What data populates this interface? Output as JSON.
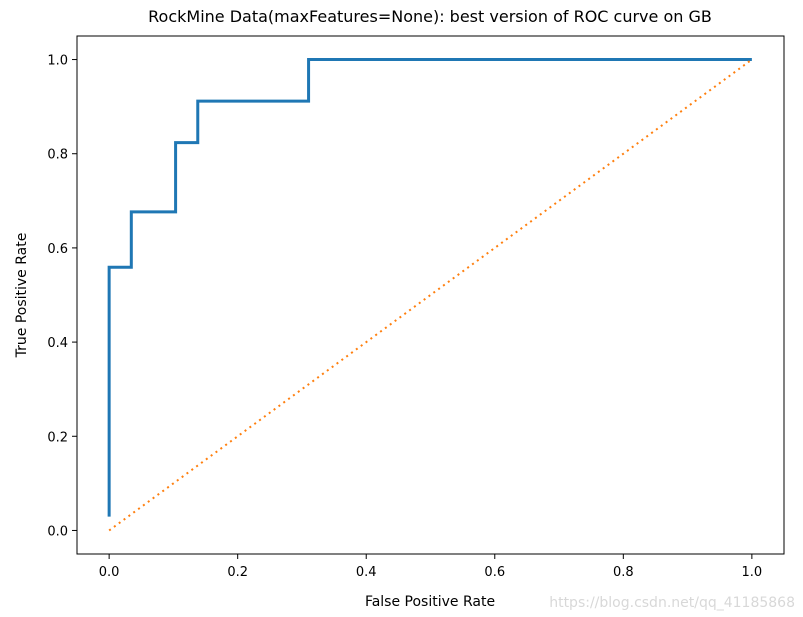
{
  "chart_data": {
    "type": "line",
    "title": "RockMine Data(maxFeatures=None): best version of ROC curve on GB",
    "xlabel": "False Positive Rate",
    "ylabel": "True Positive Rate",
    "xlim": [
      -0.05,
      1.05
    ],
    "ylim": [
      -0.05,
      1.05
    ],
    "xticks": [
      "0.0",
      "0.2",
      "0.4",
      "0.6",
      "0.8",
      "1.0"
    ],
    "yticks": [
      "0.0",
      "0.2",
      "0.4",
      "0.6",
      "0.8",
      "1.0"
    ],
    "grid": false,
    "series": [
      {
        "color": "#1f77b4",
        "style": "solid",
        "x": [
          0.0,
          0.0,
          0.0345,
          0.0345,
          0.1034,
          0.1034,
          0.1379,
          0.1379,
          0.3103,
          0.3103,
          1.0
        ],
        "y": [
          0.0294,
          0.5588,
          0.5588,
          0.6765,
          0.6765,
          0.8235,
          0.8235,
          0.9118,
          0.9118,
          1.0,
          1.0
        ]
      },
      {
        "color": "#ff7f0e",
        "style": "dotted",
        "x": [
          0,
          1
        ],
        "y": [
          0,
          1
        ]
      }
    ]
  },
  "watermark": "https://blog.csdn.net/qq_41185868"
}
